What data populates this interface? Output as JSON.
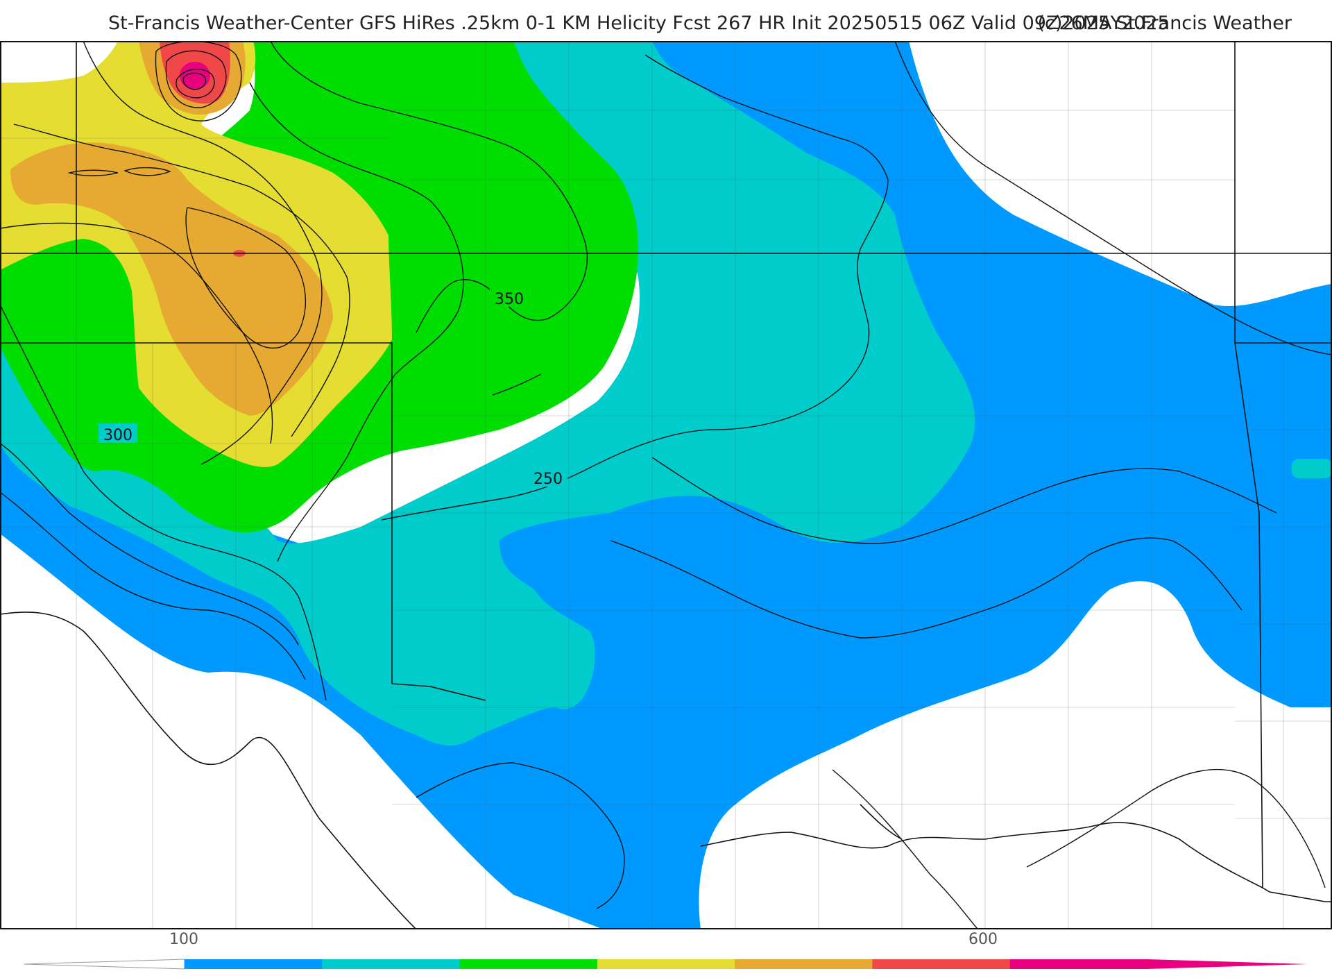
{
  "header": {
    "title": "St-Francis Weather-Center GFS HiRes .25km 0-1 KM Helicity Fcst 267 HR Init 20250515 06Z  Valid 09Z26MAY2025",
    "copyright": "(c)2025 St.Francis Weather"
  },
  "legend": {
    "ticks": [
      {
        "value": 100,
        "label": "100"
      },
      {
        "value": 600,
        "label": "600"
      }
    ],
    "bins": [
      {
        "color": "#0099ff"
      },
      {
        "color": "#00cccc"
      },
      {
        "color": "#00dd00"
      },
      {
        "color": "#e6dd33"
      },
      {
        "color": "#e6aa33"
      },
      {
        "color": "#f04848"
      },
      {
        "color": "#e8007f"
      }
    ]
  },
  "contours": {
    "labels": [
      {
        "text": "350"
      },
      {
        "text": "300"
      },
      {
        "text": "250"
      }
    ]
  },
  "colors": {
    "band_blue": "#0099ff",
    "band_teal": "#00cccc",
    "band_green": "#00dd00",
    "band_yellow": "#e6dd33",
    "band_orange": "#e6aa33",
    "band_red": "#f04848",
    "band_magenta": "#e8007f"
  }
}
